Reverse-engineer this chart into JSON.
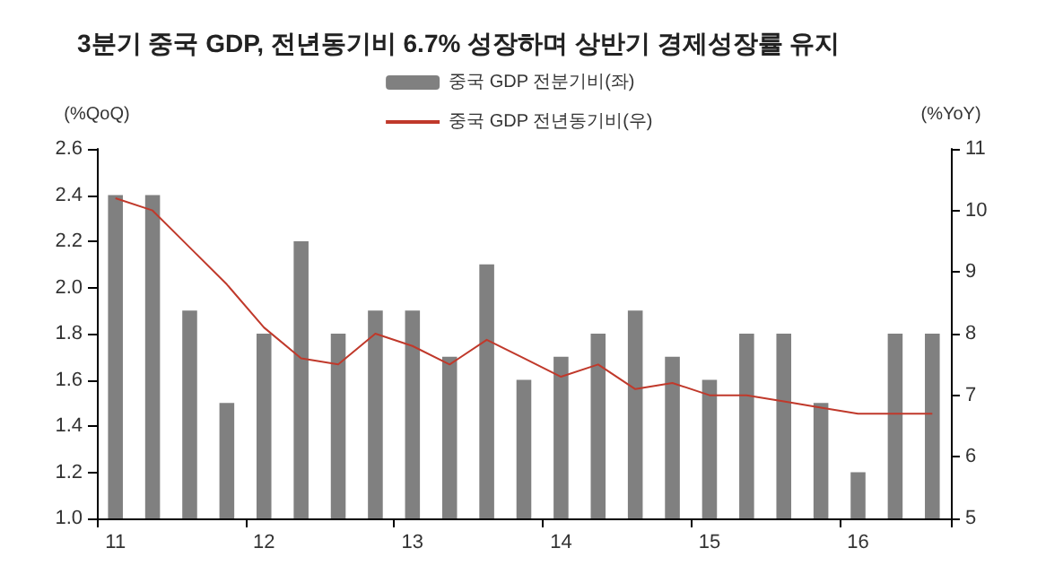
{
  "chart_data": {
    "type": "bar",
    "title": "3분기 중국 GDP, 전년동기비 6.7% 성장하며 상반기 경제성장률 유지",
    "ylabel": "(%QoQ)",
    "y2label": "(%YoY)",
    "categories": [
      "11",
      null,
      null,
      null,
      "12",
      null,
      null,
      null,
      "13",
      null,
      null,
      null,
      "14",
      null,
      null,
      null,
      "15",
      null,
      null,
      null,
      "16",
      null,
      null
    ],
    "series": [
      {
        "name": "중국 GDP 전분기비(좌)",
        "color": "#808080",
        "values": [
          2.4,
          2.4,
          1.9,
          1.5,
          1.8,
          2.2,
          1.8,
          1.9,
          1.9,
          1.7,
          2.1,
          1.6,
          1.7,
          1.8,
          1.9,
          1.7,
          1.6,
          1.8,
          1.8,
          1.5,
          1.2,
          1.8,
          1.8
        ]
      },
      {
        "name": "중국 GDP 전년동기비(우)",
        "type": "line",
        "axis": "y2",
        "color": "#c0392b",
        "values": [
          10.2,
          10.0,
          9.4,
          8.8,
          8.1,
          7.6,
          7.5,
          8.0,
          7.8,
          7.5,
          7.9,
          7.6,
          7.3,
          7.5,
          7.1,
          7.2,
          7.0,
          7.0,
          6.9,
          6.8,
          6.7,
          6.7,
          6.7
        ]
      }
    ],
    "ylim": [
      1.0,
      2.6
    ],
    "yticks": [
      {
        "value": 1,
        "label": "1.0"
      },
      1.2,
      1.4,
      1.6,
      1.8,
      {
        "value": 2,
        "label": "2.0"
      },
      2.2,
      2.4,
      2.6
    ],
    "y2lim": [
      5,
      11
    ],
    "y2ticks": [
      5,
      6,
      7,
      8,
      9,
      10,
      11
    ],
    "grid": false,
    "legend": "top",
    "marker": "none"
  }
}
